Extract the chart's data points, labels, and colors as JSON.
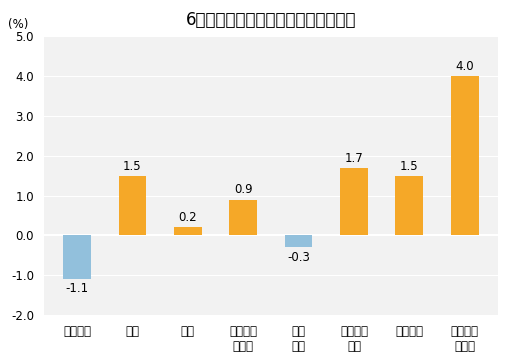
{
  "title": "6月份居民消费价格分类别同比涨跌幅",
  "ylabel": "(%)",
  "categories": [
    "食品烟酒",
    "衣着",
    "居住",
    "生活用品\n及服务",
    "交通\n通信",
    "教育文化\n娱乐",
    "医疗保健",
    "其他用品\n及服务"
  ],
  "values": [
    -1.1,
    1.5,
    0.2,
    0.9,
    -0.3,
    1.7,
    1.5,
    4.0
  ],
  "bar_colors_positive": "#F5A828",
  "bar_colors_negative": "#92C0DC",
  "ylim": [
    -2.0,
    5.0
  ],
  "yticks": [
    -2.0,
    -1.0,
    0.0,
    1.0,
    2.0,
    3.0,
    4.0,
    5.0
  ],
  "background_color": "#ffffff",
  "plot_bg_color": "#f2f2f2",
  "title_fontsize": 12,
  "label_fontsize": 8.5,
  "tick_fontsize": 8.5,
  "ylabel_fontsize": 8.5
}
